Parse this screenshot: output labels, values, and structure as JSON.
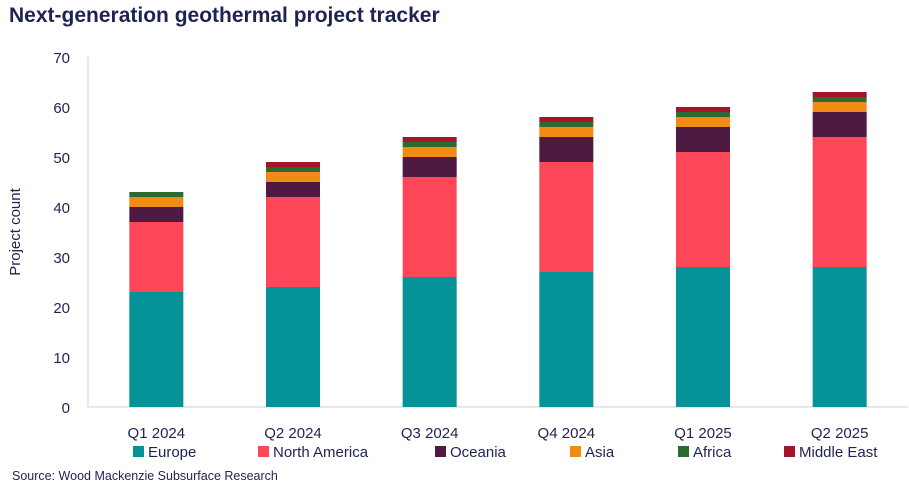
{
  "title": "Next-generation geothermal project tracker",
  "source": "Source: Wood Mackenzie Subsurface Research",
  "chart_data": {
    "type": "bar",
    "stacked": true,
    "title": "Next-generation geothermal project tracker",
    "xlabel": "",
    "ylabel": "Project count",
    "ylim": [
      0,
      70
    ],
    "yticks": [
      0,
      10,
      20,
      30,
      40,
      50,
      60,
      70
    ],
    "grid": false,
    "legend_position": "bottom",
    "categories": [
      "Q1 2024",
      "Q2 2024",
      "Q3 2024",
      "Q4 2024",
      "Q1 2025",
      "Q2 2025"
    ],
    "series": [
      {
        "name": "Europe",
        "color": "#069398",
        "values": [
          23,
          24,
          26,
          27,
          28,
          28
        ]
      },
      {
        "name": "North America",
        "color": "#fd4657",
        "values": [
          14,
          18,
          20,
          22,
          23,
          26
        ]
      },
      {
        "name": "Oceania",
        "color": "#4e1a41",
        "values": [
          3,
          3,
          4,
          5,
          5,
          5
        ]
      },
      {
        "name": "Asia",
        "color": "#f18b16",
        "values": [
          2,
          2,
          2,
          2,
          2,
          2
        ]
      },
      {
        "name": "Africa",
        "color": "#2d6a33",
        "values": [
          1,
          1,
          1,
          1,
          1,
          1
        ]
      },
      {
        "name": "Middle East",
        "color": "#a3162a",
        "values": [
          0,
          1,
          1,
          1,
          1,
          1
        ]
      }
    ]
  }
}
